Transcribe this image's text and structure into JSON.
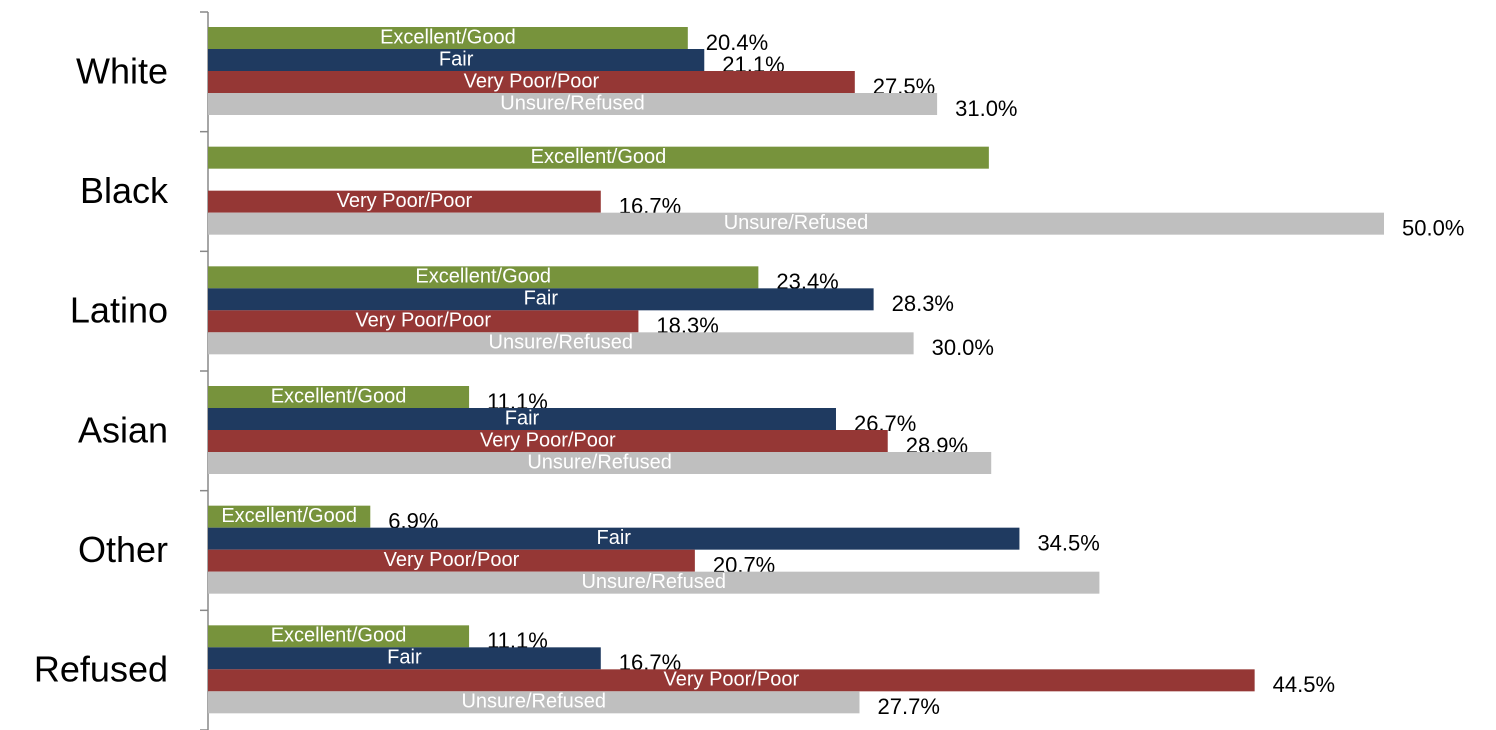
{
  "chart_data": {
    "type": "bar",
    "orientation": "horizontal",
    "categories": [
      "White",
      "Black",
      "Latino",
      "Asian",
      "Other",
      "Refused"
    ],
    "xlim": [
      0,
      50
    ],
    "series": [
      {
        "name": "Excellent/Good",
        "color": "#77933c",
        "values": [
          20.4,
          33.2,
          23.4,
          11.1,
          6.9,
          11.1
        ],
        "value_labels": [
          "20.4%",
          null,
          "23.4%",
          "11.1%",
          "6.9%",
          "11.1%"
        ]
      },
      {
        "name": "Fair",
        "color": "#1f3a60",
        "values": [
          21.1,
          null,
          28.3,
          26.7,
          34.5,
          16.7
        ],
        "value_labels": [
          "21.1%",
          null,
          "28.3%",
          "26.7%",
          "34.5%",
          "16.7%"
        ]
      },
      {
        "name": "Very Poor/Poor",
        "color": "#953735",
        "values": [
          27.5,
          16.7,
          18.3,
          28.9,
          20.7,
          44.5
        ],
        "value_labels": [
          "27.5%",
          "16.7%",
          "18.3%",
          "28.9%",
          "20.7%",
          "44.5%"
        ]
      },
      {
        "name": "Unsure/Refused",
        "color": "#bfbfbf",
        "values": [
          31.0,
          50.0,
          30.0,
          33.3,
          37.9,
          27.7
        ],
        "value_labels": [
          "31.0%",
          "50.0%",
          "30.0%",
          null,
          null,
          "27.7%"
        ]
      }
    ]
  }
}
